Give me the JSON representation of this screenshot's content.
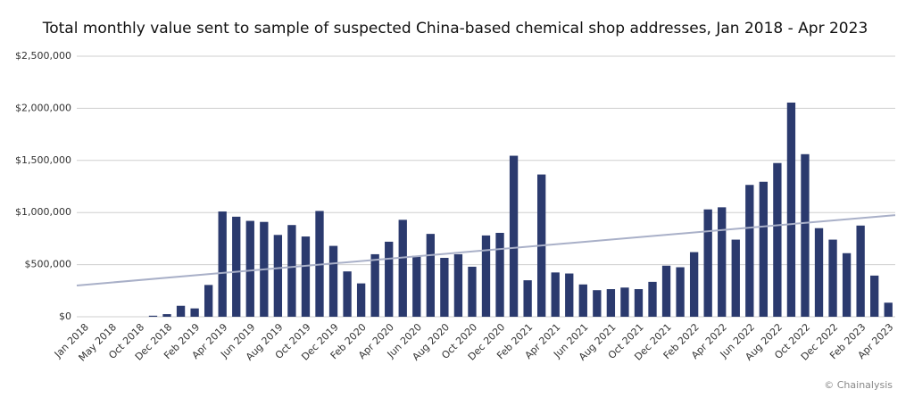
{
  "chart_data": {
    "type": "bar",
    "title": "Total monthly value sent to sample of suspected China-based chemical shop addresses, Jan 2018 - Apr 2023",
    "credit": "© Chainalysis",
    "color": "#2b3a6e",
    "grid": true,
    "categories": [
      "Jan 2018",
      null,
      "May 2018",
      null,
      "Oct 2018",
      null,
      "Dec 2018",
      null,
      "Feb 2019",
      null,
      "Apr 2019",
      null,
      "Jun 2019",
      null,
      "Aug 2019",
      null,
      "Oct 2019",
      null,
      "Dec 2019",
      null,
      "Feb 2020",
      null,
      "Apr 2020",
      null,
      "Jun 2020",
      null,
      "Aug 2020",
      null,
      "Oct 2020",
      null,
      "Dec 2020",
      null,
      "Feb 2021",
      null,
      "Apr 2021",
      null,
      "Jun 2021",
      null,
      "Aug 2021",
      null,
      "Oct 2021",
      null,
      "Dec 2021",
      null,
      "Feb 2022",
      null,
      "Apr 2022",
      null,
      "Jun 2022",
      null,
      "Aug 2022",
      null,
      "Oct 2022",
      null,
      "Dec 2022",
      null,
      "Feb 2023",
      null,
      "Apr 2023"
    ],
    "values": [
      0,
      0,
      0,
      0,
      0,
      10000,
      25000,
      105000,
      80000,
      305000,
      1010000,
      960000,
      920000,
      910000,
      785000,
      880000,
      770000,
      1015000,
      680000,
      435000,
      320000,
      600000,
      720000,
      930000,
      585000,
      795000,
      565000,
      600000,
      480000,
      780000,
      805000,
      1545000,
      350000,
      1365000,
      425000,
      415000,
      310000,
      255000,
      265000,
      280000,
      265000,
      335000,
      490000,
      475000,
      620000,
      1030000,
      1050000,
      740000,
      1265000,
      1295000,
      1475000,
      2055000,
      1560000,
      850000,
      740000,
      610000,
      875000,
      395000,
      135000
    ],
    "trendline": {
      "start": 300000,
      "end": 975000,
      "color": "#a9b0c8"
    },
    "ylim": [
      0,
      2500000
    ],
    "yticks": [
      {
        "value": 0,
        "label": "$0"
      },
      {
        "value": 500000,
        "label": "$500,000"
      },
      {
        "value": 1000000,
        "label": "$1,000,000"
      },
      {
        "value": 1500000,
        "label": "$1,500,000"
      },
      {
        "value": 2000000,
        "label": "$2,000,000"
      },
      {
        "value": 2500000,
        "label": "$2,500,000"
      }
    ]
  }
}
